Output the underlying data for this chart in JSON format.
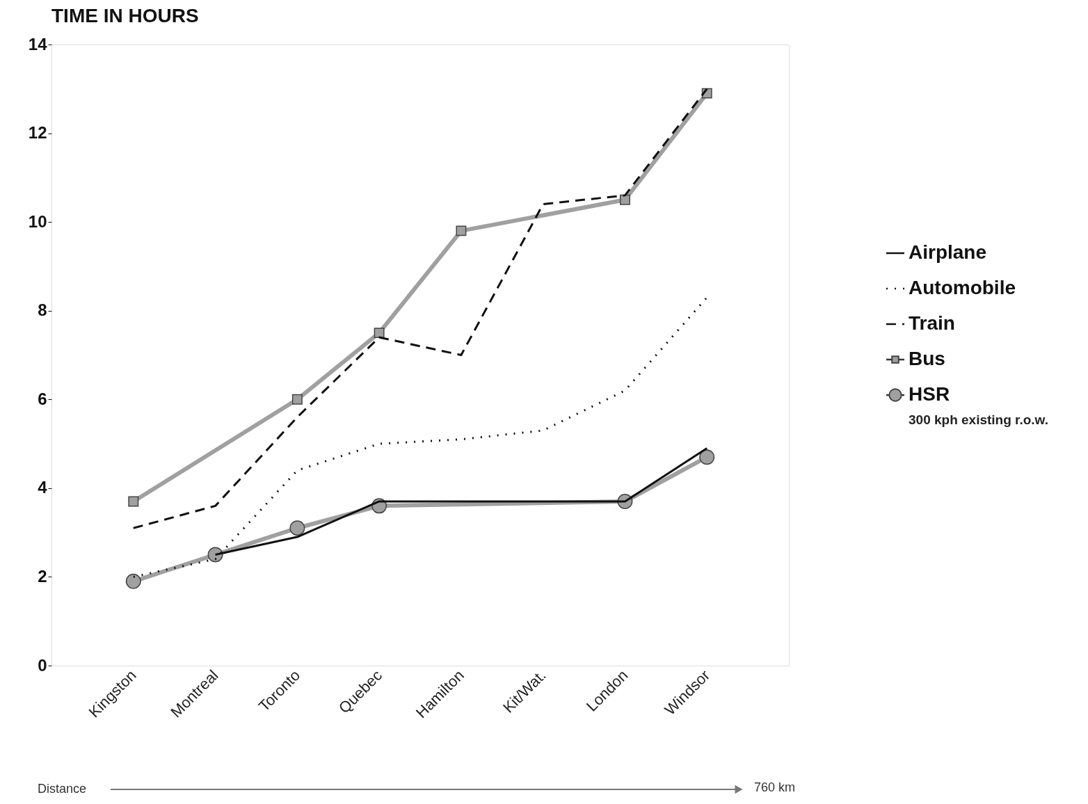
{
  "chart_data": {
    "type": "line",
    "ylabel": "TIME IN HOURS",
    "categories": [
      "Kingston",
      "Montreal",
      "Toronto",
      "Quebec",
      "Hamilton",
      "Kit/Wat.",
      "London",
      "Windsor"
    ],
    "series": [
      {
        "name": "Airplane",
        "color": "#111111",
        "line_style": "solid",
        "marker": "none",
        "values": [
          null,
          2.5,
          2.9,
          3.7,
          null,
          null,
          3.7,
          4.9
        ]
      },
      {
        "name": "Automobile",
        "color": "#111111",
        "line_style": "dotted",
        "marker": "none",
        "values": [
          2.0,
          2.4,
          4.4,
          5.0,
          5.1,
          5.3,
          6.2,
          8.3
        ]
      },
      {
        "name": "Train",
        "color": "#111111",
        "line_style": "dashed",
        "marker": "none",
        "values": [
          3.1,
          3.6,
          5.6,
          7.4,
          7.0,
          10.4,
          10.6,
          13.0
        ]
      },
      {
        "name": "Bus",
        "color": "#a0a0a0",
        "line_style": "solid",
        "marker": "square",
        "values": [
          3.7,
          null,
          6.0,
          7.5,
          9.8,
          null,
          10.5,
          12.9
        ]
      },
      {
        "name": "HSR",
        "color": "#a0a0a0",
        "line_style": "solid",
        "marker": "circle",
        "values": [
          1.9,
          2.5,
          3.1,
          3.6,
          null,
          null,
          3.7,
          4.7
        ]
      }
    ],
    "ylim": [
      0,
      14
    ],
    "yticks": [
      0,
      2,
      4,
      6,
      8,
      10,
      12,
      14
    ],
    "grid": false,
    "legend": "right",
    "annotations": [
      "300 kph existing r.o.w.",
      "Distance",
      "760 km"
    ]
  }
}
